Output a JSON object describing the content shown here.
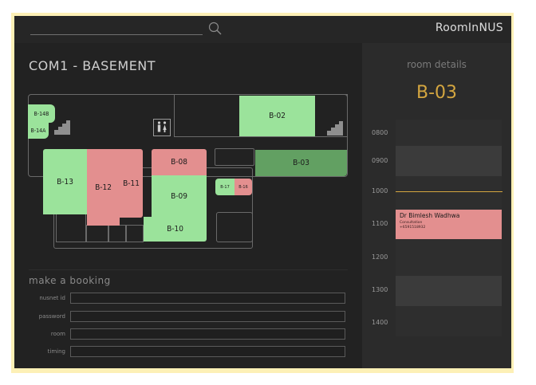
{
  "app": {
    "brand": "RoomInNUS"
  },
  "search": {
    "placeholder": ""
  },
  "floor": {
    "title": "COM1 - BASEMENT"
  },
  "rooms": {
    "b14b": "B-14B",
    "b14a": "B-14A",
    "b02": "B-02",
    "b13": "B-13",
    "b12": "B-12",
    "b11": "B-11",
    "b08": "B-08",
    "b09": "B-09",
    "b10": "B-10",
    "b03": "B-03",
    "b17": "B-17",
    "b16": "B-16"
  },
  "booking": {
    "title": "make a booking",
    "fields": [
      {
        "label": "nusnet id",
        "value": ""
      },
      {
        "label": "password",
        "value": ""
      },
      {
        "label": "room",
        "value": ""
      },
      {
        "label": "timing",
        "value": ""
      }
    ]
  },
  "details": {
    "title": "room details",
    "room_code": "B-03",
    "times": [
      "0800",
      "0900",
      "1000",
      "1100",
      "1200",
      "1300",
      "1400"
    ],
    "booking": {
      "name": "Dr Bimlesh Wadhwa",
      "type": "Consultation",
      "phone": "+6591518932"
    }
  },
  "colors": {
    "available": "#9be39b",
    "booked": "#e38f8f",
    "selected": "#62a062",
    "accent": "#d4a640"
  },
  "icons": [
    "search-icon",
    "stairs-icon",
    "restroom-icon"
  ]
}
